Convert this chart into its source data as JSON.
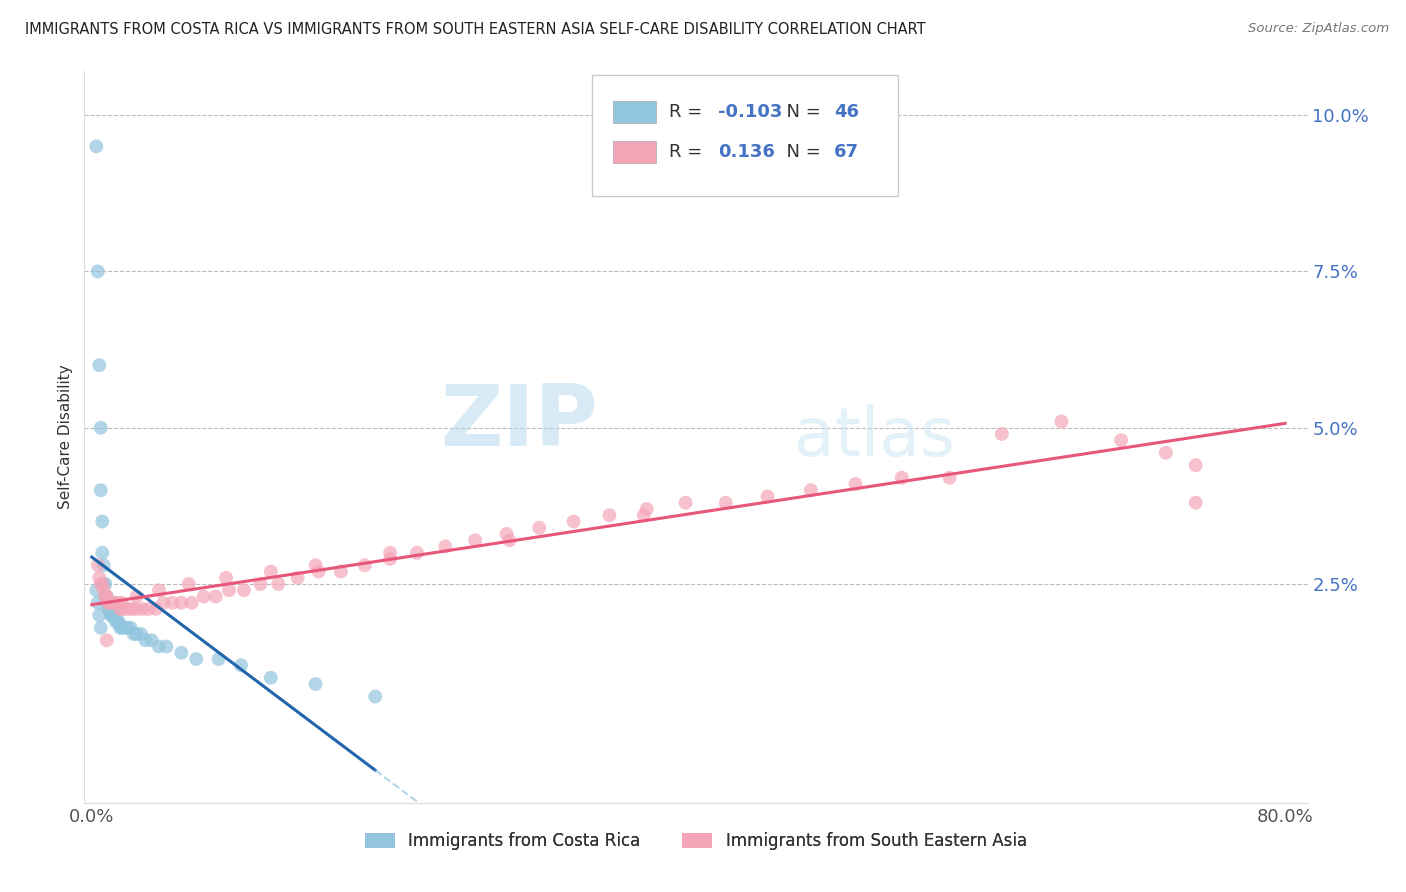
{
  "title": "IMMIGRANTS FROM COSTA RICA VS IMMIGRANTS FROM SOUTH EASTERN ASIA SELF-CARE DISABILITY CORRELATION CHART",
  "source": "Source: ZipAtlas.com",
  "ylabel": "Self-Care Disability",
  "legend_label1": "Immigrants from Costa Rica",
  "legend_label2": "Immigrants from South Eastern Asia",
  "R1": -0.103,
  "N1": 46,
  "R2": 0.136,
  "N2": 67,
  "color_blue": "#92c5de",
  "color_pink": "#f4a6b8",
  "color_blue_line": "#2166ac",
  "color_pink_line": "#e8567a",
  "color_blue_dash": "#92c5de",
  "watermark_color": "#d6ecf8",
  "xlim": [
    0.0,
    0.8
  ],
  "ylim": [
    -0.01,
    0.107
  ],
  "ytick_vals": [
    0.0,
    0.025,
    0.05,
    0.075,
    0.1
  ],
  "ytick_labels": [
    "",
    "2.5%",
    "5.0%",
    "7.5%",
    "10.0%"
  ],
  "blue_x": [
    0.003,
    0.004,
    0.005,
    0.006,
    0.006,
    0.007,
    0.007,
    0.008,
    0.008,
    0.009,
    0.009,
    0.01,
    0.01,
    0.011,
    0.011,
    0.012,
    0.013,
    0.013,
    0.014,
    0.015,
    0.016,
    0.017,
    0.018,
    0.019,
    0.02,
    0.022,
    0.024,
    0.026,
    0.028,
    0.03,
    0.033,
    0.036,
    0.04,
    0.045,
    0.05,
    0.06,
    0.07,
    0.085,
    0.1,
    0.12,
    0.15,
    0.19,
    0.003,
    0.004,
    0.005,
    0.006
  ],
  "blue_y": [
    0.095,
    0.075,
    0.06,
    0.05,
    0.04,
    0.035,
    0.03,
    0.028,
    0.025,
    0.025,
    0.023,
    0.023,
    0.022,
    0.022,
    0.021,
    0.021,
    0.02,
    0.02,
    0.02,
    0.02,
    0.019,
    0.019,
    0.019,
    0.018,
    0.018,
    0.018,
    0.018,
    0.018,
    0.017,
    0.017,
    0.017,
    0.016,
    0.016,
    0.015,
    0.015,
    0.014,
    0.013,
    0.013,
    0.012,
    0.01,
    0.009,
    0.007,
    0.024,
    0.022,
    0.02,
    0.018
  ],
  "pink_x": [
    0.004,
    0.005,
    0.006,
    0.007,
    0.008,
    0.009,
    0.01,
    0.011,
    0.012,
    0.013,
    0.015,
    0.017,
    0.019,
    0.021,
    0.024,
    0.027,
    0.03,
    0.034,
    0.038,
    0.043,
    0.048,
    0.054,
    0.06,
    0.067,
    0.075,
    0.083,
    0.092,
    0.102,
    0.113,
    0.125,
    0.138,
    0.152,
    0.167,
    0.183,
    0.2,
    0.218,
    0.237,
    0.257,
    0.278,
    0.3,
    0.323,
    0.347,
    0.372,
    0.398,
    0.425,
    0.453,
    0.482,
    0.512,
    0.543,
    0.575,
    0.37,
    0.28,
    0.2,
    0.15,
    0.12,
    0.09,
    0.065,
    0.045,
    0.03,
    0.02,
    0.61,
    0.65,
    0.69,
    0.72,
    0.74,
    0.74,
    0.01
  ],
  "pink_y": [
    0.028,
    0.026,
    0.025,
    0.025,
    0.024,
    0.023,
    0.023,
    0.022,
    0.022,
    0.022,
    0.022,
    0.022,
    0.021,
    0.021,
    0.021,
    0.021,
    0.021,
    0.021,
    0.021,
    0.021,
    0.022,
    0.022,
    0.022,
    0.022,
    0.023,
    0.023,
    0.024,
    0.024,
    0.025,
    0.025,
    0.026,
    0.027,
    0.027,
    0.028,
    0.029,
    0.03,
    0.031,
    0.032,
    0.033,
    0.034,
    0.035,
    0.036,
    0.037,
    0.038,
    0.038,
    0.039,
    0.04,
    0.041,
    0.042,
    0.042,
    0.036,
    0.032,
    0.03,
    0.028,
    0.027,
    0.026,
    0.025,
    0.024,
    0.023,
    0.022,
    0.049,
    0.051,
    0.048,
    0.046,
    0.044,
    0.038,
    0.016
  ]
}
